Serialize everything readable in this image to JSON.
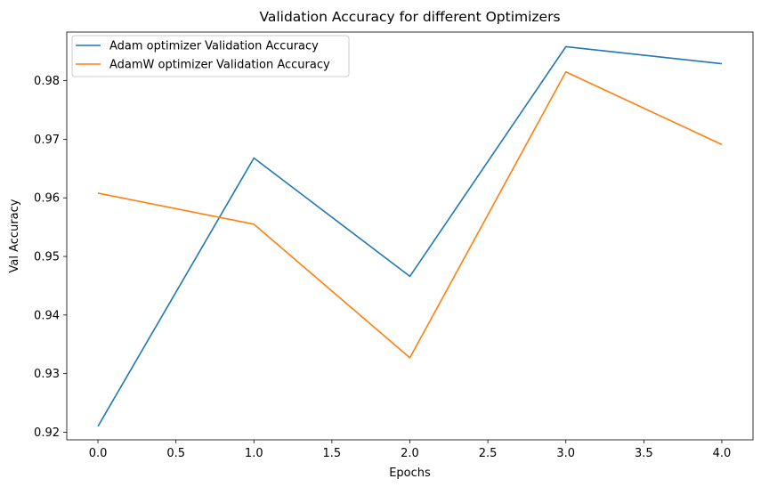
{
  "chart_data": {
    "type": "line",
    "title": "Validation Accuracy for different Optimizers",
    "xlabel": "Epochs",
    "ylabel": "Val Accuracy",
    "xlim": [
      -0.2,
      4.2
    ],
    "ylim": [
      0.9187,
      0.9883
    ],
    "xticks": [
      0.0,
      0.5,
      1.0,
      1.5,
      2.0,
      2.5,
      3.0,
      3.5,
      4.0
    ],
    "xtick_labels": [
      "0.0",
      "0.5",
      "1.0",
      "1.5",
      "2.0",
      "2.5",
      "3.0",
      "3.5",
      "4.0"
    ],
    "yticks": [
      0.92,
      0.93,
      0.94,
      0.95,
      0.96,
      0.97,
      0.98
    ],
    "ytick_labels": [
      "0.92",
      "0.93",
      "0.94",
      "0.95",
      "0.96",
      "0.97",
      "0.98"
    ],
    "grid": false,
    "legend_position": "upper-left",
    "x": [
      0,
      1,
      2,
      3,
      4
    ],
    "series": [
      {
        "name": "Adam optimizer Validation Accuracy",
        "color": "#1f77b4",
        "values": [
          0.921,
          0.9668,
          0.9466,
          0.9858,
          0.9829
        ]
      },
      {
        "name": "AdamW optimizer Validation Accuracy",
        "color": "#ff7f0e",
        "values": [
          0.9608,
          0.9555,
          0.9327,
          0.9815,
          0.9691
        ]
      }
    ]
  }
}
